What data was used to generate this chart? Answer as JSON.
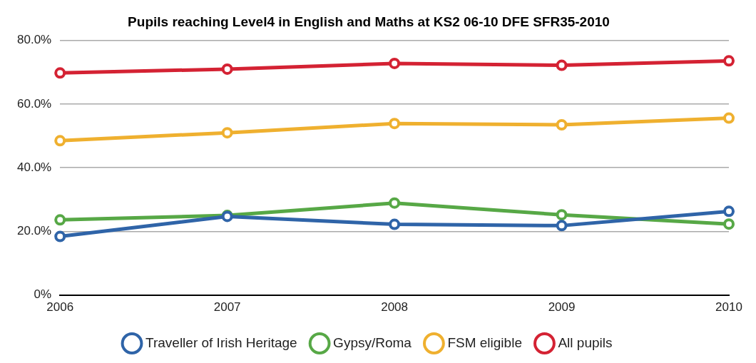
{
  "chart_data": {
    "type": "line",
    "title": "Pupils reaching Level4 in English and Maths at KS2 06-10 DFE SFR35-2010",
    "categories": [
      "2006",
      "2007",
      "2008",
      "2009",
      "2010"
    ],
    "series": [
      {
        "name": "Traveller of Irish Heritage",
        "color": "#2f64a8",
        "values": [
          18.4,
          24.7,
          22.2,
          21.8,
          26.3
        ]
      },
      {
        "name": "Gypsy/Roma",
        "color": "#57a846",
        "values": [
          23.6,
          25,
          28.9,
          25.2,
          22.3
        ]
      },
      {
        "name": "FSM eligible",
        "color": "#efb02f",
        "values": [
          48.5,
          51,
          53.9,
          53.5,
          55.6
        ]
      },
      {
        "name": "All pupils",
        "color": "#d42233",
        "values": [
          69.8,
          71,
          72.8,
          72.2,
          73.6
        ]
      }
    ],
    "ylim": [
      0,
      80
    ],
    "yticks": [
      {
        "value": 0,
        "label": "0%"
      },
      {
        "value": 20,
        "label": "20.0%"
      },
      {
        "value": 40,
        "label": "40.0%"
      },
      {
        "value": 60,
        "label": "60.0%"
      },
      {
        "value": 80,
        "label": "80.0%"
      }
    ],
    "grid": "y",
    "legend": "bottom",
    "marker": "circle",
    "line_style": "solid"
  }
}
